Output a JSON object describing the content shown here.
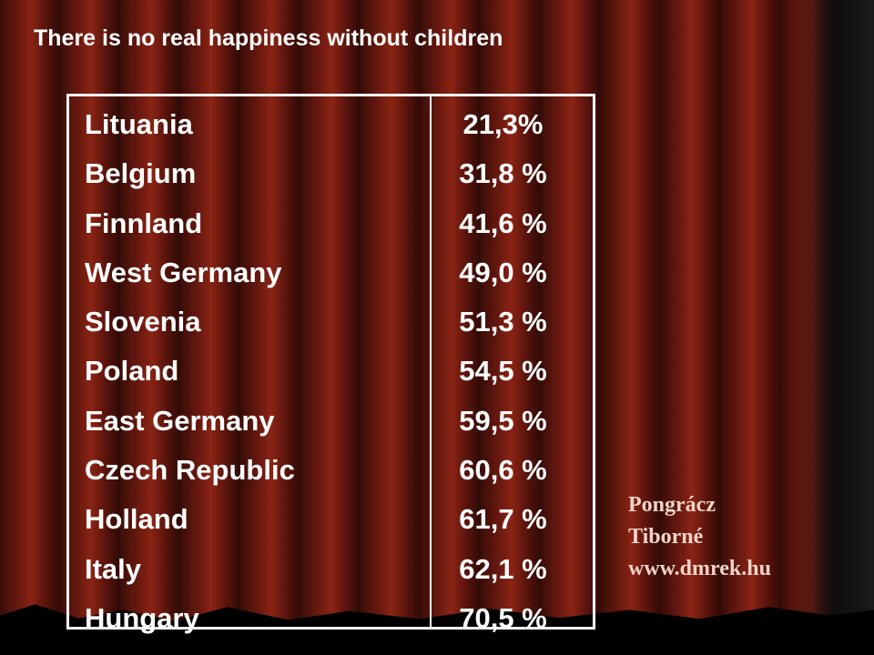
{
  "title": "There is no real happiness without children",
  "table": {
    "rows": [
      {
        "country": "Lituania",
        "value": "21,3%"
      },
      {
        "country": "Belgium",
        "value": "31,8 %"
      },
      {
        "country": "Finnland",
        "value": "41,6 %"
      },
      {
        "country": "West Germany",
        "value": "49,0 %"
      },
      {
        "country": "Slovenia",
        "value": "51,3 %"
      },
      {
        "country": "Poland",
        "value": "54,5 %"
      },
      {
        "country": "East Germany",
        "value": "59,5 %"
      },
      {
        "country": "Czech Republic",
        "value": "60,6 %"
      },
      {
        "country": "Holland",
        "value": "61,7 %"
      },
      {
        "country": "Italy",
        "value": "62,1 %"
      },
      {
        "country": "Hungary",
        "value": "70,5 %"
      }
    ]
  },
  "credit": {
    "line1": "Pongrácz",
    "line2": "Tiborné",
    "line3": "www.dmrek.hu"
  },
  "colors": {
    "text": "#ffffff",
    "credit_text": "#f1d3c8",
    "curtain": "#6e1a10"
  }
}
